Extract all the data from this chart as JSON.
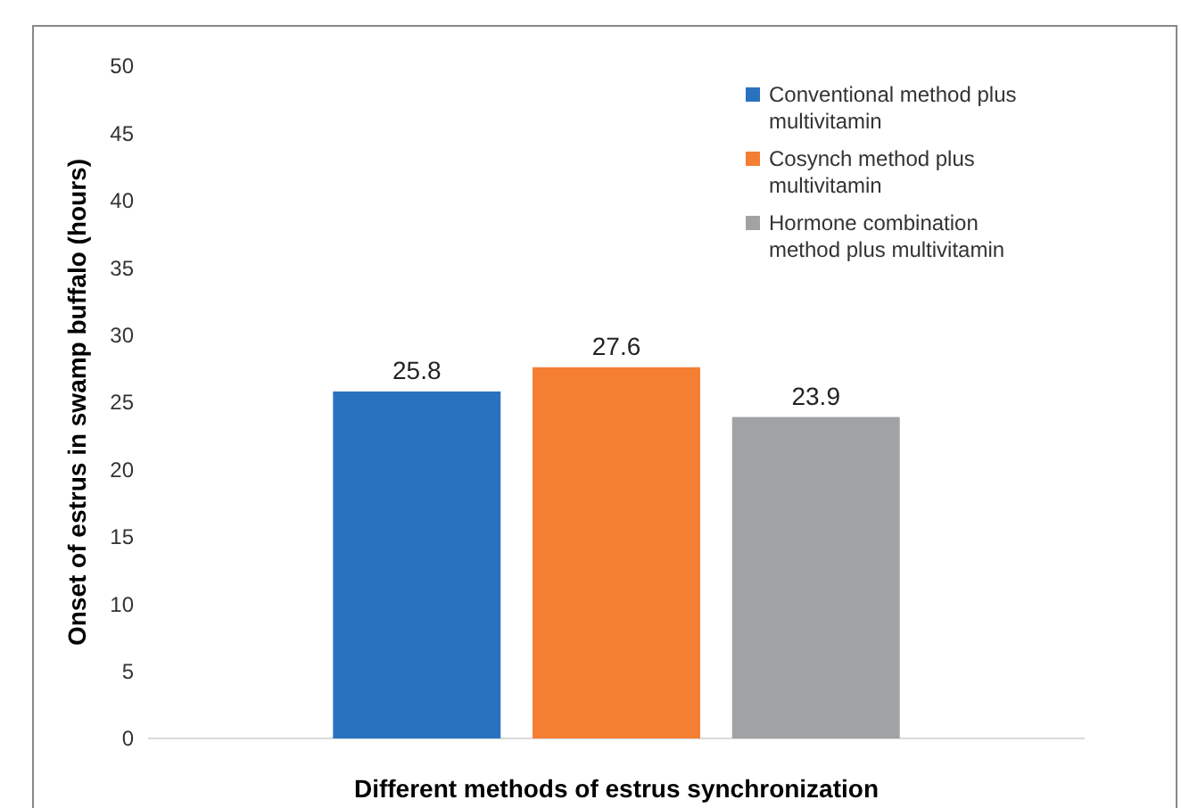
{
  "chart_data": {
    "type": "bar",
    "xlabel": "Different methods of estrus synchronization",
    "ylabel": "Onset of estrus in swamp buffalo (hours)",
    "categories": [
      null
    ],
    "series": [
      {
        "name": "Conventional method plus multivitamin",
        "color": "#2872c0",
        "values": [
          25.8
        ]
      },
      {
        "name": "Cosynch method plus multivitamin",
        "color": "#f47e32",
        "values": [
          27.6
        ]
      },
      {
        "name": "Hormone combination method plus multivitamin",
        "color": "#a0a2a3",
        "values": [
          23.9
        ]
      }
    ],
    "ylim": [
      0,
      50
    ],
    "yticks": [
      0,
      5,
      10,
      15,
      20,
      25,
      30,
      35,
      40,
      45,
      50
    ],
    "data_labels": true,
    "legend": "top right"
  }
}
